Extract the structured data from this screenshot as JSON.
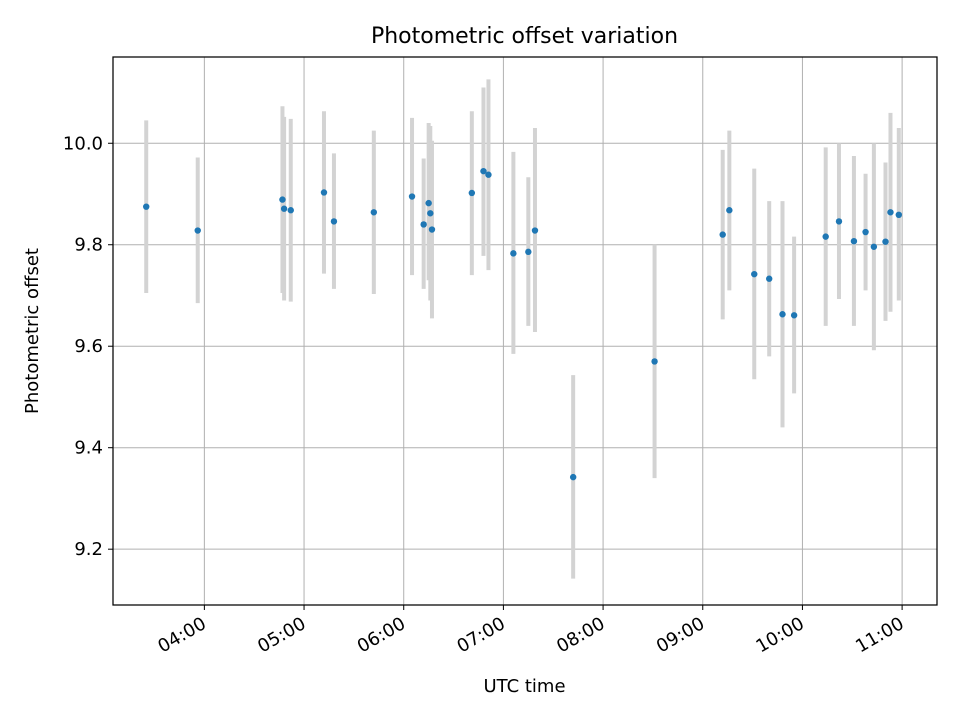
{
  "chart_data": {
    "type": "scatter",
    "title": "Photometric offset variation",
    "xlabel": "UTC time",
    "ylabel": "Photometric offset",
    "x_ticks": [
      "04:00",
      "05:00",
      "06:00",
      "07:00",
      "08:00",
      "09:00",
      "10:00",
      "11:00"
    ],
    "y_ticks": [
      "9.2",
      "9.4",
      "9.6",
      "9.8",
      "10.0"
    ],
    "xlim": [
      "03:05",
      "11:21"
    ],
    "ylim": [
      9.09,
      10.17
    ],
    "grid": true,
    "colors": {
      "point": "#1f77b4",
      "errorbar": "#d3d3d3",
      "grid": "#b0b0b0",
      "axis": "#000000"
    },
    "points": [
      {
        "x": "03:25",
        "y": 9.875,
        "lo": 9.705,
        "hi": 10.045
      },
      {
        "x": "03:56",
        "y": 9.828,
        "lo": 9.685,
        "hi": 9.972
      },
      {
        "x": "04:47",
        "y": 9.889,
        "lo": 9.705,
        "hi": 10.073
      },
      {
        "x": "04:48",
        "y": 9.871,
        "lo": 9.69,
        "hi": 10.052
      },
      {
        "x": "04:52",
        "y": 9.868,
        "lo": 9.688,
        "hi": 10.048
      },
      {
        "x": "05:12",
        "y": 9.903,
        "lo": 9.743,
        "hi": 10.063
      },
      {
        "x": "05:18",
        "y": 9.846,
        "lo": 9.713,
        "hi": 9.98
      },
      {
        "x": "05:42",
        "y": 9.864,
        "lo": 9.703,
        "hi": 10.025
      },
      {
        "x": "06:05",
        "y": 9.895,
        "lo": 9.74,
        "hi": 10.05
      },
      {
        "x": "06:12",
        "y": 9.84,
        "lo": 9.713,
        "hi": 9.97
      },
      {
        "x": "06:15",
        "y": 9.882,
        "lo": 9.73,
        "hi": 10.04
      },
      {
        "x": "06:16",
        "y": 9.862,
        "lo": 9.69,
        "hi": 10.034
      },
      {
        "x": "06:17",
        "y": 9.83,
        "lo": 9.655,
        "hi": 10.005
      },
      {
        "x": "06:41",
        "y": 9.902,
        "lo": 9.74,
        "hi": 10.063
      },
      {
        "x": "06:48",
        "y": 9.945,
        "lo": 9.778,
        "hi": 10.11
      },
      {
        "x": "06:51",
        "y": 9.938,
        "lo": 9.75,
        "hi": 10.126
      },
      {
        "x": "07:06",
        "y": 9.783,
        "lo": 9.585,
        "hi": 9.983
      },
      {
        "x": "07:15",
        "y": 9.786,
        "lo": 9.64,
        "hi": 9.933
      },
      {
        "x": "07:19",
        "y": 9.828,
        "lo": 9.628,
        "hi": 10.03
      },
      {
        "x": "07:42",
        "y": 9.342,
        "lo": 9.142,
        "hi": 9.543
      },
      {
        "x": "08:31",
        "y": 9.57,
        "lo": 9.34,
        "hi": 9.8
      },
      {
        "x": "09:12",
        "y": 9.82,
        "lo": 9.653,
        "hi": 9.987
      },
      {
        "x": "09:16",
        "y": 9.868,
        "lo": 9.71,
        "hi": 10.025
      },
      {
        "x": "09:31",
        "y": 9.742,
        "lo": 9.535,
        "hi": 9.95
      },
      {
        "x": "09:40",
        "y": 9.733,
        "lo": 9.58,
        "hi": 9.886
      },
      {
        "x": "09:48",
        "y": 9.663,
        "lo": 9.44,
        "hi": 9.886
      },
      {
        "x": "09:55",
        "y": 9.661,
        "lo": 9.507,
        "hi": 9.816
      },
      {
        "x": "10:14",
        "y": 9.816,
        "lo": 9.64,
        "hi": 9.992
      },
      {
        "x": "10:22",
        "y": 9.846,
        "lo": 9.693,
        "hi": 10.0
      },
      {
        "x": "10:31",
        "y": 9.807,
        "lo": 9.64,
        "hi": 9.975
      },
      {
        "x": "10:38",
        "y": 9.825,
        "lo": 9.71,
        "hi": 9.94
      },
      {
        "x": "10:43",
        "y": 9.796,
        "lo": 9.592,
        "hi": 10.0
      },
      {
        "x": "10:50",
        "y": 9.806,
        "lo": 9.65,
        "hi": 9.962
      },
      {
        "x": "10:53",
        "y": 9.864,
        "lo": 9.668,
        "hi": 10.06
      },
      {
        "x": "10:58",
        "y": 9.859,
        "lo": 9.69,
        "hi": 10.03
      }
    ]
  }
}
